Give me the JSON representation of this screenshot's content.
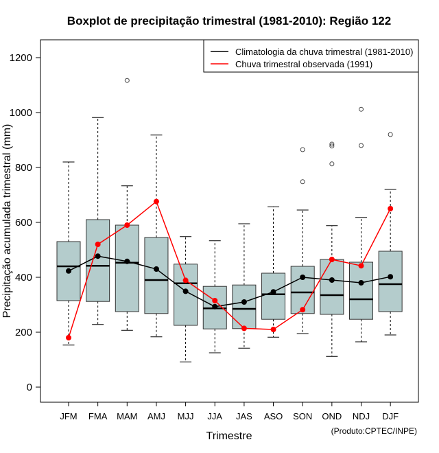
{
  "chart_data": {
    "type": "boxplot",
    "title": "Boxplot de precipitação trimestral (1981-2010): Região 122",
    "xlabel": "Trimestre",
    "ylabel": "Precipitação acumulada trimestral (mm)",
    "ylim": [
      -55,
      1265
    ],
    "yticks": [
      0,
      200,
      400,
      600,
      800,
      1000,
      1200
    ],
    "categories": [
      "JFM",
      "FMA",
      "MAM",
      "AMJ",
      "MJJ",
      "JJA",
      "JAS",
      "ASO",
      "SON",
      "OND",
      "NDJ",
      "DJF"
    ],
    "boxes": [
      {
        "whisker_low": 153,
        "q1": 315,
        "median": 440,
        "q3": 530,
        "whisker_high": 820,
        "outliers": []
      },
      {
        "whisker_low": 228,
        "q1": 312,
        "median": 442,
        "q3": 610,
        "whisker_high": 982,
        "outliers": []
      },
      {
        "whisker_low": 207,
        "q1": 275,
        "median": 453,
        "q3": 590,
        "whisker_high": 733,
        "outliers": [
          1117
        ]
      },
      {
        "whisker_low": 183,
        "q1": 268,
        "median": 390,
        "q3": 545,
        "whisker_high": 918,
        "outliers": []
      },
      {
        "whisker_low": 92,
        "q1": 225,
        "median": 378,
        "q3": 448,
        "whisker_high": 548,
        "outliers": []
      },
      {
        "whisker_low": 125,
        "q1": 212,
        "median": 287,
        "q3": 367,
        "whisker_high": 533,
        "outliers": []
      },
      {
        "whisker_low": 142,
        "q1": 213,
        "median": 285,
        "q3": 372,
        "whisker_high": 595,
        "outliers": []
      },
      {
        "whisker_low": 182,
        "q1": 247,
        "median": 338,
        "q3": 415,
        "whisker_high": 657,
        "outliers": []
      },
      {
        "whisker_low": 195,
        "q1": 268,
        "median": 345,
        "q3": 440,
        "whisker_high": 645,
        "outliers": [
          865,
          748
        ]
      },
      {
        "whisker_low": 112,
        "q1": 265,
        "median": 335,
        "q3": 465,
        "whisker_high": 588,
        "outliers": [
          885,
          878,
          813
        ]
      },
      {
        "whisker_low": 165,
        "q1": 247,
        "median": 320,
        "q3": 455,
        "whisker_high": 618,
        "outliers": [
          1012,
          880
        ]
      },
      {
        "whisker_low": 190,
        "q1": 275,
        "median": 375,
        "q3": 495,
        "whisker_high": 720,
        "outliers": [
          920
        ]
      }
    ],
    "series": [
      {
        "name": "Climatologia da chuva trimestral (1981-2010)",
        "color": "#000000",
        "values": [
          423,
          477,
          458,
          430,
          349,
          293,
          310,
          347,
          400,
          390,
          380,
          402
        ]
      },
      {
        "name": "Chuva trimestral observada (1991)",
        "color": "#ff0000",
        "values": [
          180,
          520,
          590,
          676,
          389,
          315,
          214,
          210,
          282,
          465,
          442,
          650
        ]
      }
    ],
    "box_color": "#b4cccc",
    "legend_position": "top-right"
  },
  "credit": "(Produto:CPTEC/INPE)"
}
